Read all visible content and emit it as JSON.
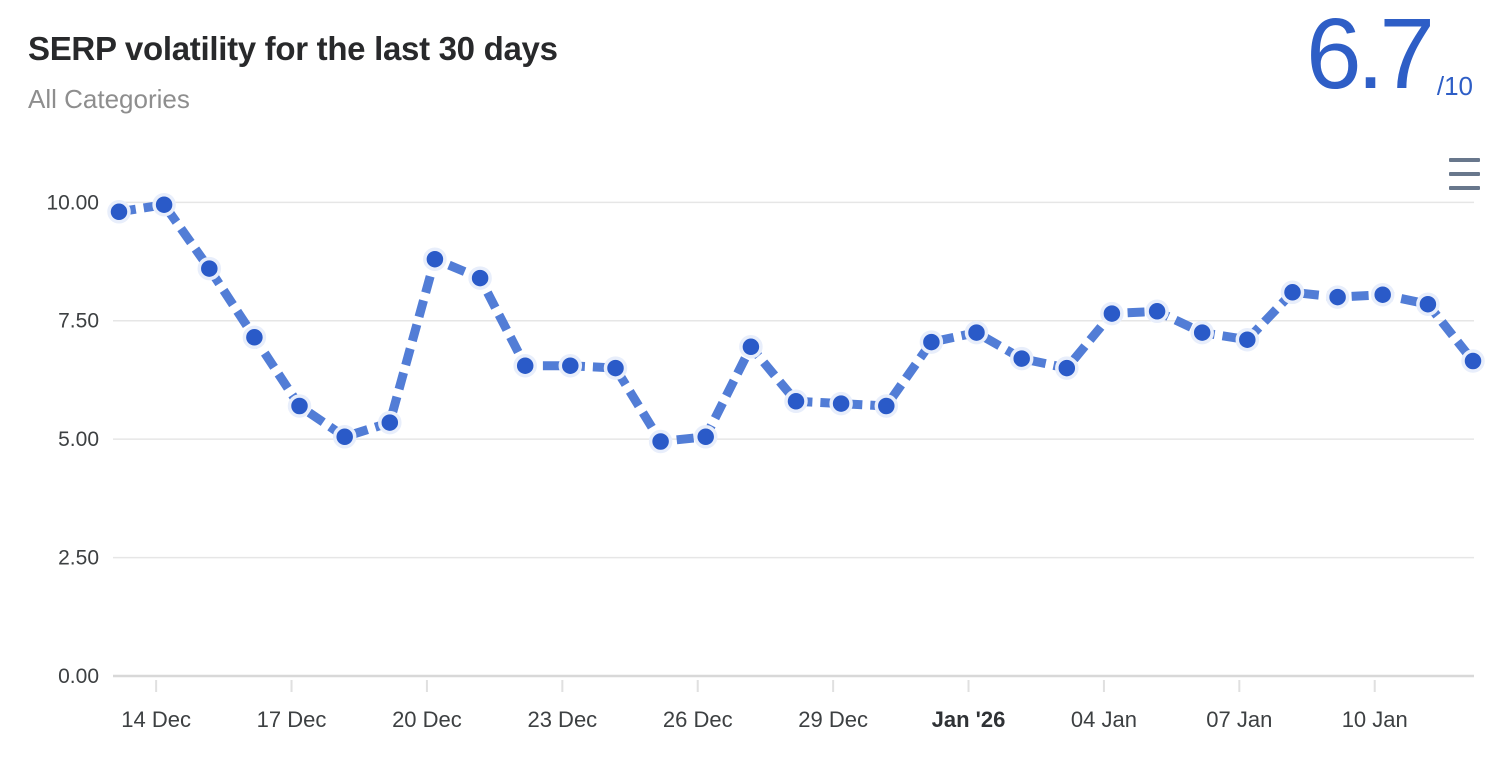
{
  "header": {
    "title": "SERP volatility for the last 30 days",
    "subtitle": "All Categories",
    "score": "6.7",
    "score_suffix": "/10"
  },
  "icons": {
    "menu_icon_name": "hamburger-menu-icon"
  },
  "colors": {
    "accent_blue": "#2e5ec6",
    "line_blue": "#527dd6",
    "point_fill": "#2a5ac8",
    "point_ring": "#e8eefb",
    "grid_line": "#e6e6e6",
    "axis_line": "#d8d8d8",
    "tick_mark": "#e0e0e0",
    "axis_text": "#3d4042",
    "bold_tick_text": "#2f3235",
    "menu_icon": "#68778c"
  },
  "chart_data": {
    "type": "line",
    "title": "SERP volatility for the last 30 days",
    "subtitle": "All Categories",
    "current_score": 6.7,
    "score_scale_max": 10,
    "x": [
      "13 Dec",
      "14 Dec",
      "15 Dec",
      "16 Dec",
      "17 Dec",
      "18 Dec",
      "19 Dec",
      "20 Dec",
      "21 Dec",
      "22 Dec",
      "23 Dec",
      "24 Dec",
      "25 Dec",
      "26 Dec",
      "27 Dec",
      "28 Dec",
      "29 Dec",
      "30 Dec",
      "31 Dec",
      "01 Jan",
      "02 Jan",
      "03 Jan",
      "04 Jan",
      "05 Jan",
      "06 Jan",
      "07 Jan",
      "08 Jan",
      "09 Jan",
      "10 Jan",
      "11 Jan",
      "12 Jan"
    ],
    "values": [
      9.8,
      9.95,
      8.6,
      7.15,
      5.7,
      5.05,
      5.35,
      8.8,
      8.4,
      6.55,
      6.55,
      6.5,
      4.95,
      5.05,
      6.95,
      5.8,
      5.75,
      5.7,
      7.05,
      7.25,
      6.7,
      6.5,
      7.65,
      7.7,
      7.25,
      7.1,
      8.1,
      8.0,
      8.05,
      7.85,
      6.65
    ],
    "x_ticks": [
      {
        "label": "14 Dec",
        "index": 1,
        "bold": false
      },
      {
        "label": "17 Dec",
        "index": 4,
        "bold": false
      },
      {
        "label": "20 Dec",
        "index": 7,
        "bold": false
      },
      {
        "label": "23 Dec",
        "index": 10,
        "bold": false
      },
      {
        "label": "26 Dec",
        "index": 13,
        "bold": false
      },
      {
        "label": "29 Dec",
        "index": 16,
        "bold": false
      },
      {
        "label": "Jan '26",
        "index": 19,
        "bold": true
      },
      {
        "label": "04 Jan",
        "index": 22,
        "bold": false
      },
      {
        "label": "07 Jan",
        "index": 25,
        "bold": false
      },
      {
        "label": "10 Jan",
        "index": 28,
        "bold": false
      }
    ],
    "y_ticks": [
      {
        "label": "10.00",
        "value": 10
      },
      {
        "label": "7.50",
        "value": 7.5
      },
      {
        "label": "5.00",
        "value": 5
      },
      {
        "label": "2.50",
        "value": 2.5
      },
      {
        "label": "0.00",
        "value": 0
      }
    ],
    "ylim": [
      0,
      10
    ],
    "grid": true,
    "legend": false,
    "line_style": "dashed",
    "marker": "circle"
  }
}
